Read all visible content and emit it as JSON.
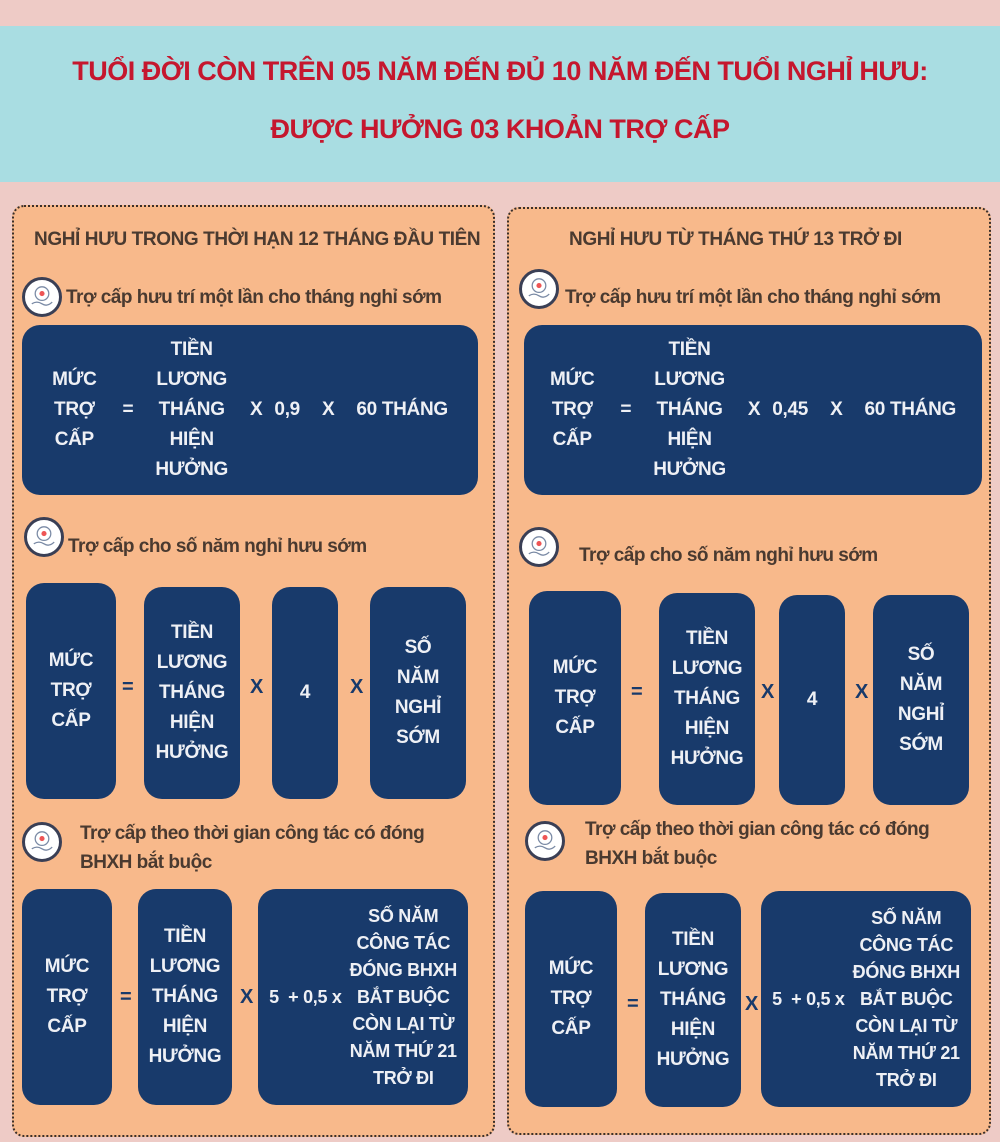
{
  "title": {
    "line1": "TUỔI ĐỜI CÒN TRÊN 05 NĂM ĐẾN ĐỦ 10 NĂM ĐẾN TUỔI NGHỈ HƯU:",
    "line2": "ĐƯỢC HƯỞNG 03 KHOẢN TRỢ CẤP"
  },
  "colors": {
    "banner": "#a9dde2",
    "title": "#c5172e",
    "panel": "#f8b98b",
    "box": "#183a6b",
    "background": "#eecbc6"
  },
  "common": {
    "muc": "MỨC",
    "tro": "TRỢ",
    "cap": "CẤP",
    "eq": "=",
    "times": "X",
    "times_lower": "x",
    "tien": "TIỀN",
    "luong": "LƯƠNG",
    "thang": "THÁNG",
    "hien": "HIỆN",
    "huong": "HƯỞNG",
    "months60": "60 THÁNG",
    "four": "4",
    "so": "SỐ",
    "nam": "NĂM",
    "nghi": "NGHỈ",
    "som": "SỚM",
    "five_plus": "5  + 0,5 x",
    "y1": "SỐ NĂM",
    "y2": "CÔNG TÁC",
    "y3": "ĐÓNG BHXH",
    "y4": "BẮT BUỘC",
    "y5": "CÒN LẠI TỪ",
    "y6": "NĂM THỨ 21",
    "y7": "TRỞ ĐI",
    "icon": "hand-money-cycle-icon"
  },
  "panels": [
    {
      "heading": "NGHỈ HƯU TRONG THỜI HẠN 12 THÁNG ĐẦU TIÊN",
      "factor": "0,9",
      "s1": "Trợ cấp hưu trí một lần cho tháng nghỉ sớm",
      "s2": "Trợ cấp cho số năm nghỉ hưu sớm",
      "s3a": "Trợ cấp theo thời gian công tác có đóng",
      "s3b": "BHXH bắt buộc"
    },
    {
      "heading": "NGHỈ HƯU TỪ THÁNG THỨ 13 TRỞ ĐI",
      "factor": "0,45",
      "s1": "Trợ cấp hưu trí một lần cho tháng nghỉ sớm",
      "s2": "Trợ cấp cho số năm nghỉ hưu sớm",
      "s3a": "Trợ cấp theo thời gian công tác có đóng",
      "s3b": "BHXH bắt buộc"
    }
  ]
}
